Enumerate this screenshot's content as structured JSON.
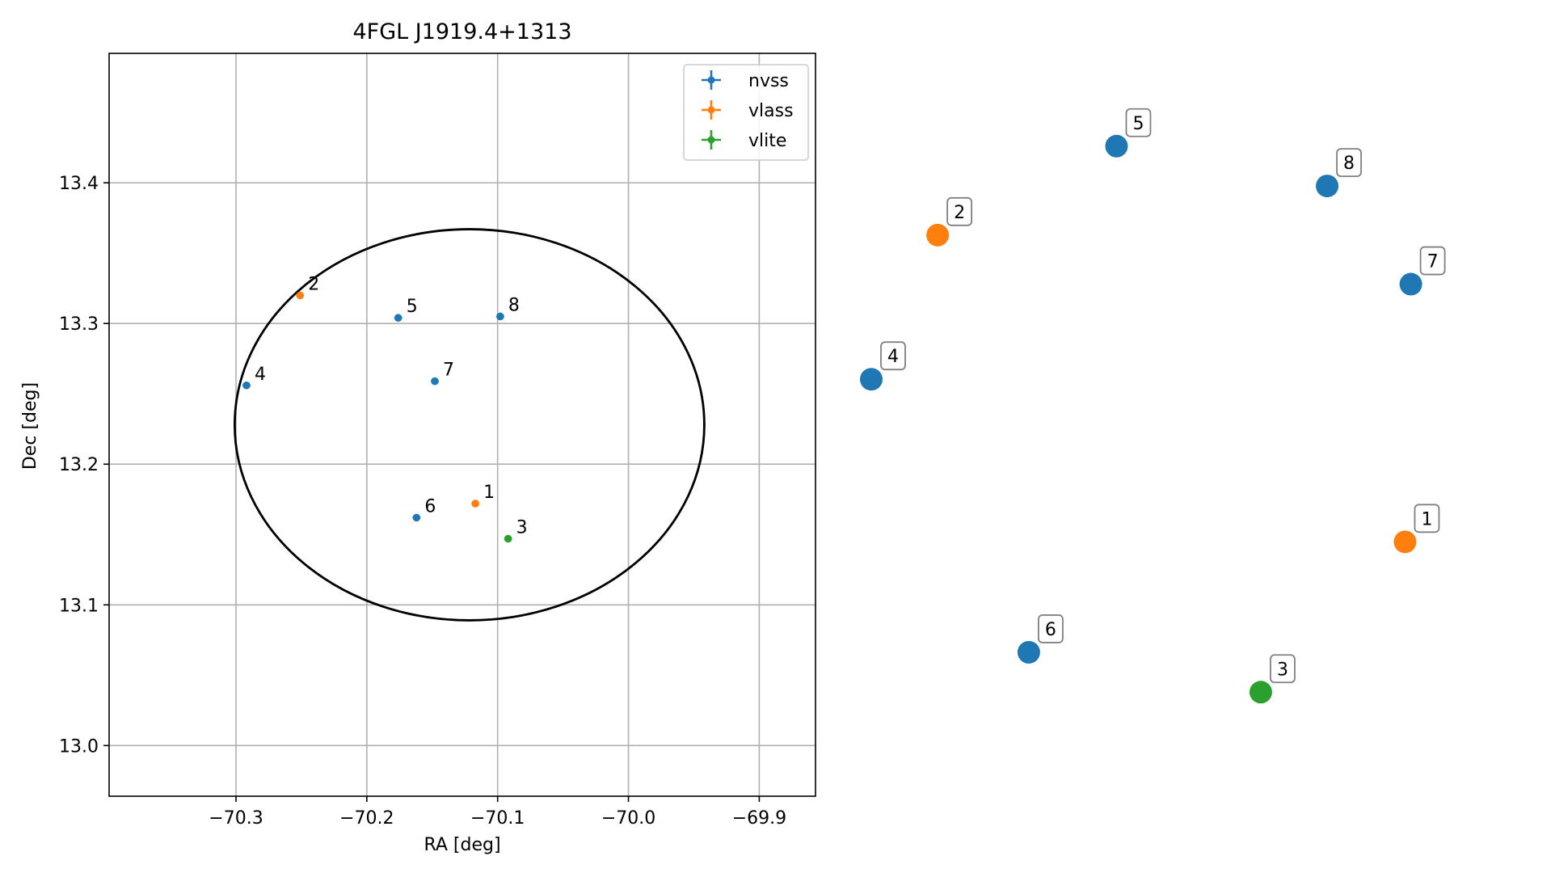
{
  "chart_data": [
    {
      "type": "scatter",
      "title": "4FGL J1919.4+1313",
      "xlabel": "RA [deg]",
      "ylabel": "Dec [deg]",
      "xlim": [
        -70.397,
        -69.857
      ],
      "ylim": [
        12.964,
        13.492
      ],
      "xticks": [
        -70.3,
        -70.2,
        -70.1,
        -70.0,
        -69.9
      ],
      "xtick_labels": [
        "−70.3",
        "−70.2",
        "−70.1",
        "−70.0",
        "−69.9"
      ],
      "yticks": [
        13.0,
        13.1,
        13.2,
        13.3,
        13.4
      ],
      "ytick_labels": [
        "13.0",
        "13.1",
        "13.2",
        "13.3",
        "13.4"
      ],
      "grid": true,
      "legend_position": "top-right",
      "series": [
        {
          "name": "nvss",
          "color": "#1f77b4",
          "points": [
            {
              "label": "4",
              "x": -70.292,
              "y": 13.256
            },
            {
              "label": "5",
              "x": -70.176,
              "y": 13.304
            },
            {
              "label": "6",
              "x": -70.162,
              "y": 13.162
            },
            {
              "label": "7",
              "x": -70.148,
              "y": 13.259
            },
            {
              "label": "8",
              "x": -70.098,
              "y": 13.305
            }
          ]
        },
        {
          "name": "vlass",
          "color": "#ff7f0e",
          "points": [
            {
              "label": "1",
              "x": -70.117,
              "y": 13.172
            },
            {
              "label": "2",
              "x": -70.251,
              "y": 13.32
            }
          ]
        },
        {
          "name": "vlite",
          "color": "#2ca02c",
          "points": [
            {
              "label": "3",
              "x": -70.092,
              "y": 13.147
            }
          ]
        }
      ],
      "ellipse": {
        "center_x": -70.1215,
        "center_y": 13.228,
        "semi_axis_ra": 0.1795,
        "semi_axis_dec": 0.139,
        "color": "#000000"
      }
    },
    {
      "type": "scatter",
      "title": "",
      "axes_visible": false,
      "nodes": [
        {
          "label": "1",
          "series": "vlass",
          "x": 0.925,
          "y": 0.325
        },
        {
          "label": "2",
          "series": "vlass",
          "x": 0.115,
          "y": 0.825
        },
        {
          "label": "3",
          "series": "vlite",
          "x": 0.675,
          "y": 0.08
        },
        {
          "label": "4",
          "series": "nvss",
          "x": 0.0,
          "y": 0.59
        },
        {
          "label": "5",
          "series": "nvss",
          "x": 0.425,
          "y": 0.97
        },
        {
          "label": "6",
          "series": "nvss",
          "x": 0.273,
          "y": 0.145
        },
        {
          "label": "7",
          "series": "nvss",
          "x": 0.935,
          "y": 0.745
        },
        {
          "label": "8",
          "series": "nvss",
          "x": 0.79,
          "y": 0.905
        }
      ]
    }
  ],
  "colors": {
    "nvss": "#1f77b4",
    "vlass": "#ff7f0e",
    "vlite": "#2ca02c",
    "grid": "#b0b0b0"
  }
}
